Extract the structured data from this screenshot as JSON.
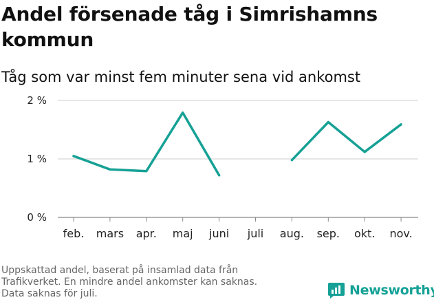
{
  "colors": {
    "line": "#16a195",
    "grid": "#cccccc",
    "axis": "#888888",
    "brand": "#15a196"
  },
  "chart_data": {
    "type": "line",
    "title": "Andel försenade tåg i Simrishamns kommun",
    "subtitle": "Tåg som var minst fem minuter sena vid ankomst",
    "categories": [
      "feb.",
      "mars",
      "apr.",
      "maj",
      "juni",
      "juli",
      "aug.",
      "sep.",
      "okt.",
      "nov."
    ],
    "series": [
      {
        "name": "Andel försenade tåg",
        "values": [
          1.05,
          0.82,
          0.79,
          1.79,
          0.72,
          null,
          0.98,
          1.63,
          1.12,
          1.59
        ]
      }
    ],
    "ylim": [
      0,
      2
    ],
    "yticks": [
      0,
      1,
      2
    ],
    "ytick_labels": [
      "0 %",
      "1 %",
      "2 %"
    ],
    "grid": true,
    "xlabel": "",
    "ylabel": ""
  },
  "footnote": {
    "lines": [
      "Uppskattad andel, baserat på insamlad data från",
      "Trafikverket. En mindre andel ankomster kan saknas.",
      "Data saknas för juli."
    ]
  },
  "brand": {
    "name": "Newsworthy",
    "icon": "newsworthy-logo-icon"
  }
}
